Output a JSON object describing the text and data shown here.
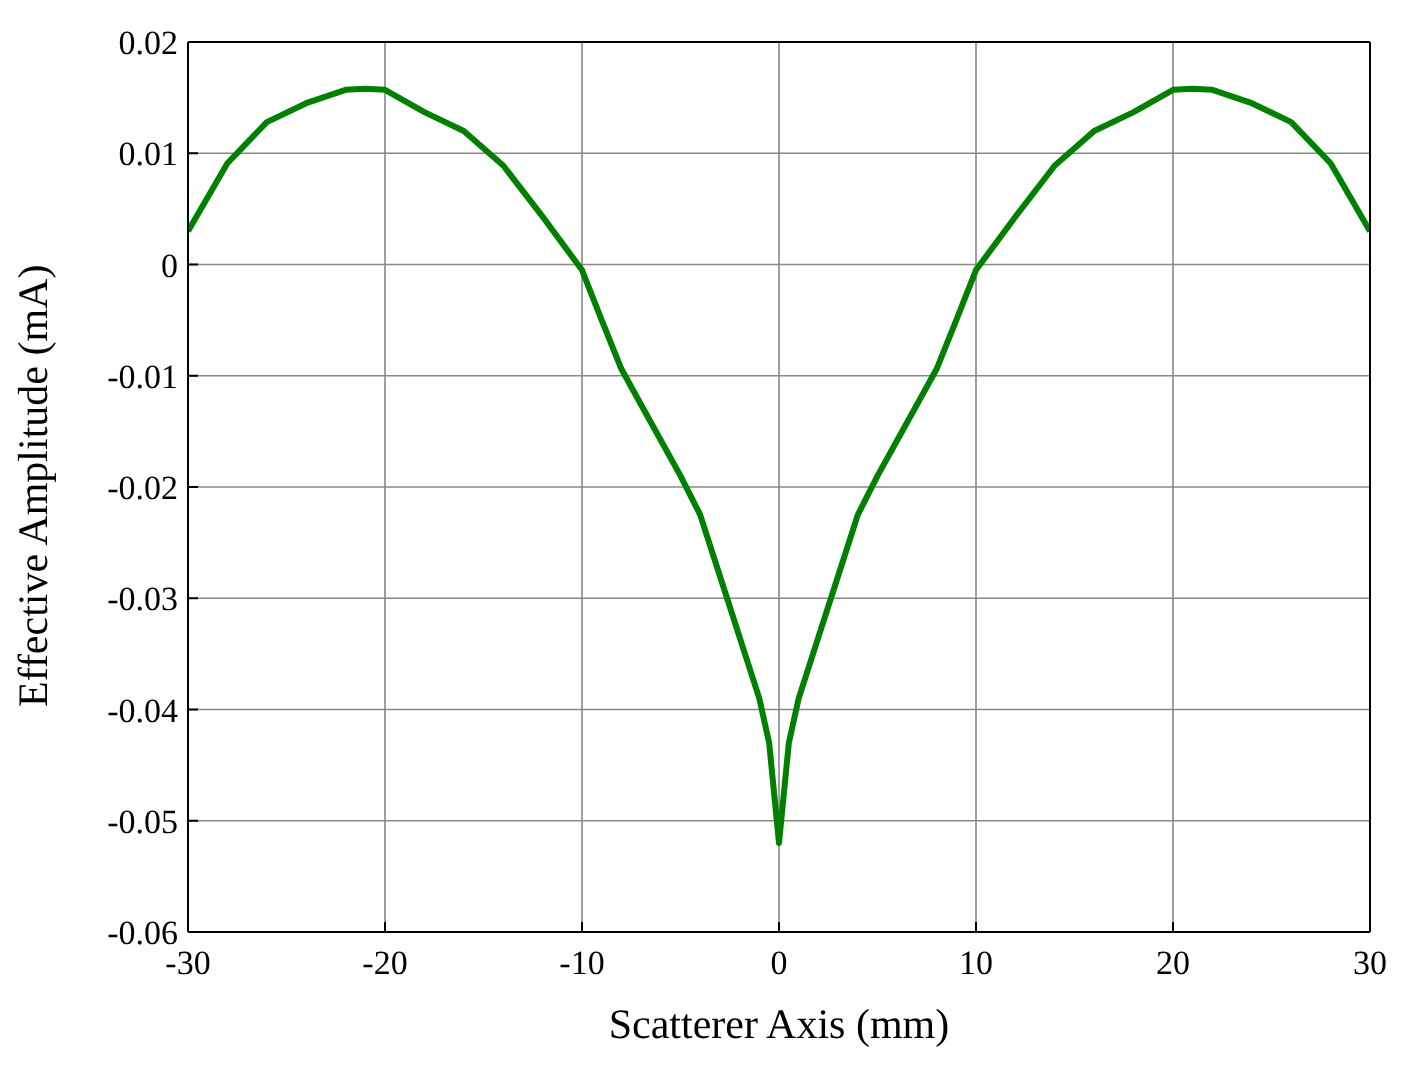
{
  "chart_data": {
    "type": "line",
    "xlabel": "Scatterer Axis (mm)",
    "ylabel": "Effective Amplitude (mA)",
    "x": [
      -30,
      -28,
      -26,
      -24,
      -22,
      -21,
      -20,
      -18,
      -16,
      -14,
      -12,
      -10,
      -9,
      -8,
      -7,
      -6,
      -5,
      -4,
      -3,
      -2,
      -1,
      -0.5,
      0,
      0.5,
      1,
      2,
      3,
      4,
      5,
      6,
      7,
      8,
      9,
      10,
      12,
      14,
      16,
      18,
      20,
      21,
      22,
      24,
      26,
      28,
      30
    ],
    "series": [
      {
        "color": "#008000",
        "values": [
          0.003,
          0.0091,
          0.0128,
          0.0145,
          0.0157,
          0.0158,
          0.0157,
          0.0137,
          0.012,
          0.0089,
          0.0043,
          -0.0005,
          -0.005,
          -0.0094,
          -0.0126,
          -0.0158,
          -0.019,
          -0.0225,
          -0.028,
          -0.0335,
          -0.039,
          -0.043,
          -0.052,
          -0.043,
          -0.039,
          -0.0335,
          -0.028,
          -0.0225,
          -0.019,
          -0.0158,
          -0.0126,
          -0.0094,
          -0.005,
          -0.0005,
          0.0043,
          0.0089,
          0.012,
          0.0137,
          0.0157,
          0.0158,
          0.0157,
          0.0145,
          0.0128,
          0.0091,
          0.003
        ]
      }
    ],
    "xlim": [
      -30,
      30
    ],
    "xticks": [
      -30,
      -20,
      -10,
      0,
      10,
      20,
      30
    ],
    "ylim": [
      -0.06,
      0.02
    ],
    "yticks": [
      -0.06,
      -0.05,
      -0.04,
      -0.03,
      -0.02,
      -0.01,
      0,
      0.01,
      0.02
    ],
    "grid": true,
    "marker": "none",
    "line_style": "solid"
  }
}
